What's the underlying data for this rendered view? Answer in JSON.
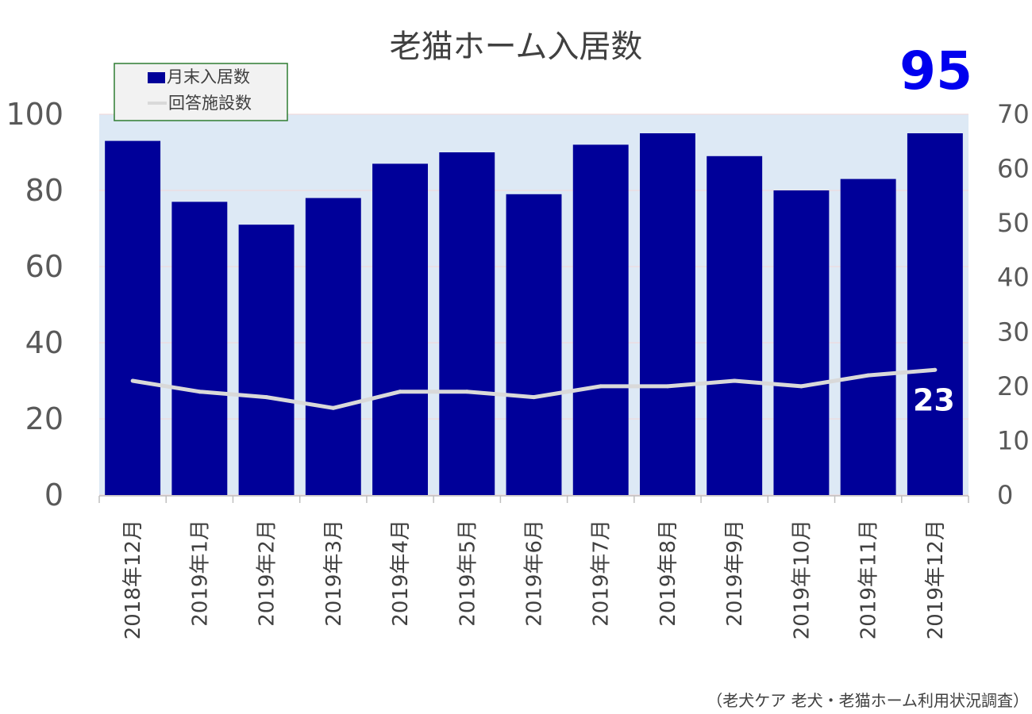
{
  "chart_data": {
    "type": "bar",
    "title": "老猫ホーム入居数",
    "categories": [
      "2018年12月",
      "2019年1月",
      "2019年2月",
      "2019年3月",
      "2019年4月",
      "2019年5月",
      "2019年6月",
      "2019年7月",
      "2019年8月",
      "2019年9月",
      "2019年10月",
      "2019年11月",
      "2019年12月"
    ],
    "series": [
      {
        "name": "月末入居数",
        "type": "bar",
        "axis": "left",
        "color": "#000099",
        "values": [
          93,
          77,
          71,
          78,
          87,
          90,
          79,
          92,
          95,
          89,
          80,
          83,
          95
        ]
      },
      {
        "name": "回答施設数",
        "type": "line",
        "axis": "right",
        "color": "#d9d9d9",
        "values": [
          21,
          19,
          18,
          16,
          19,
          19,
          18,
          20,
          20,
          21,
          20,
          22,
          23
        ]
      }
    ],
    "ylim_left": [
      0,
      100
    ],
    "yticks_left": [
      "0",
      "20",
      "40",
      "60",
      "80",
      "100"
    ],
    "ylim_right": [
      0,
      70
    ],
    "yticks_right": [
      "0",
      "10",
      "20",
      "30",
      "40",
      "50",
      "60",
      "70"
    ],
    "highlight_value": "95",
    "highlight_color": "#0000ee",
    "line_end_label": "23",
    "plot_background": "#dde9f5",
    "grid": true,
    "legend_position": "top-left",
    "source": "（老犬ケア 老犬・老猫ホーム利用状況調査）"
  }
}
